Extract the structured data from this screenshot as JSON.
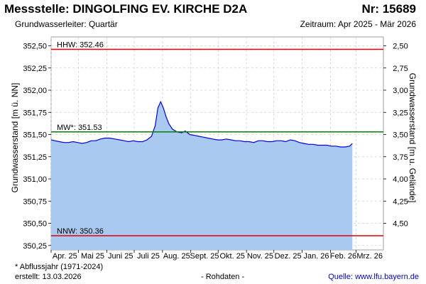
{
  "header": {
    "station": "Messstelle: DINGOLFING EV. KIRCHE D2A",
    "number": "Nr: 15689",
    "aquifer": "Grundwasserleiter: Quartär",
    "period": "Zeitraum: Apr 2025 - Mär 2026"
  },
  "footer": {
    "note": "* Abflussjahr (1971-2024)",
    "created": "erstellt:  13.03.2026",
    "raw": "- Rohdaten -",
    "source_label": "Quelle:",
    "source_url": "www.lfu.bayern.de"
  },
  "chart_data": {
    "type": "area",
    "ylabel_left": "Grundwasserstand [m ü. NN]",
    "ylabel_right": "Grundwasserstand [m u. Gelände]",
    "ylim": [
      350.2,
      352.6
    ],
    "yticks_left": [
      "352,50",
      "352,25",
      "352,00",
      "351,75",
      "351,50",
      "351,25",
      "351,00",
      "350,75",
      "350,50",
      "350,25"
    ],
    "ytick_values_left": [
      352.5,
      352.25,
      352.0,
      351.75,
      351.5,
      351.25,
      351.0,
      350.75,
      350.5,
      350.25
    ],
    "yticks_right": [
      "2,50",
      "2,75",
      "3,00",
      "3,25",
      "3,50",
      "3,75",
      "4,00",
      "4,25",
      "4,50"
    ],
    "ytick_values_right": [
      2.5,
      2.75,
      3.0,
      3.25,
      3.5,
      3.75,
      4.0,
      4.25,
      4.5
    ],
    "xlim": [
      "2025-04-01",
      "2026-03-31"
    ],
    "x_month_labels": [
      "Apr. 25",
      "Mai 25",
      "Juni 25",
      "Juli 25",
      "Aug. 25",
      "Sept. 25",
      "Okt. 25",
      "Nov. 25",
      "Dez. 25",
      "Jan. 26",
      "Feb. 26",
      "Mrz. 26"
    ],
    "x_month_starts": [
      "2025-04-01",
      "2025-05-01",
      "2025-06-01",
      "2025-07-01",
      "2025-08-01",
      "2025-09-01",
      "2025-10-01",
      "2025-11-01",
      "2025-12-01",
      "2026-01-01",
      "2026-02-01",
      "2026-03-01"
    ],
    "grid": true,
    "reference_lines": [
      {
        "label": "HHW: 352.46",
        "value": 352.46,
        "color": "#e00000"
      },
      {
        "label": "MW*: 351.53",
        "value": 351.53,
        "color": "#008000"
      },
      {
        "label": "NNW: 350.36",
        "value": 350.36,
        "color": "#e00000"
      }
    ],
    "series": [
      {
        "color": "#0000dd",
        "fill": "#a9c9f0",
        "points": [
          [
            "2025-04-01",
            351.44
          ],
          [
            "2025-04-05",
            351.43
          ],
          [
            "2025-04-10",
            351.42
          ],
          [
            "2025-04-15",
            351.41
          ],
          [
            "2025-04-20",
            351.41
          ],
          [
            "2025-04-25",
            351.42
          ],
          [
            "2025-04-30",
            351.41
          ],
          [
            "2025-05-05",
            351.4
          ],
          [
            "2025-05-10",
            351.41
          ],
          [
            "2025-05-15",
            351.43
          ],
          [
            "2025-05-20",
            351.43
          ],
          [
            "2025-05-25",
            351.45
          ],
          [
            "2025-05-30",
            351.46
          ],
          [
            "2025-06-04",
            351.46
          ],
          [
            "2025-06-10",
            351.45
          ],
          [
            "2025-06-15",
            351.44
          ],
          [
            "2025-06-20",
            351.43
          ],
          [
            "2025-06-25",
            351.42
          ],
          [
            "2025-06-30",
            351.43
          ],
          [
            "2025-07-05",
            351.42
          ],
          [
            "2025-07-10",
            351.42
          ],
          [
            "2025-07-15",
            351.44
          ],
          [
            "2025-07-20",
            351.48
          ],
          [
            "2025-07-24",
            351.6
          ],
          [
            "2025-07-27",
            351.8
          ],
          [
            "2025-07-30",
            351.87
          ],
          [
            "2025-08-02",
            351.8
          ],
          [
            "2025-08-05",
            351.7
          ],
          [
            "2025-08-08",
            351.62
          ],
          [
            "2025-08-12",
            351.56
          ],
          [
            "2025-08-17",
            351.53
          ],
          [
            "2025-08-22",
            351.52
          ],
          [
            "2025-08-26",
            351.54
          ],
          [
            "2025-08-31",
            351.5
          ],
          [
            "2025-09-05",
            351.49
          ],
          [
            "2025-09-10",
            351.48
          ],
          [
            "2025-09-15",
            351.47
          ],
          [
            "2025-09-20",
            351.46
          ],
          [
            "2025-09-25",
            351.45
          ],
          [
            "2025-09-30",
            351.44
          ],
          [
            "2025-10-05",
            351.44
          ],
          [
            "2025-10-10",
            351.45
          ],
          [
            "2025-10-15",
            351.44
          ],
          [
            "2025-10-20",
            351.43
          ],
          [
            "2025-10-25",
            351.43
          ],
          [
            "2025-10-30",
            351.42
          ],
          [
            "2025-11-04",
            351.42
          ],
          [
            "2025-11-09",
            351.41
          ],
          [
            "2025-11-14",
            351.43
          ],
          [
            "2025-11-19",
            351.43
          ],
          [
            "2025-11-24",
            351.42
          ],
          [
            "2025-11-29",
            351.42
          ],
          [
            "2025-12-04",
            351.43
          ],
          [
            "2025-12-09",
            351.43
          ],
          [
            "2025-12-14",
            351.42
          ],
          [
            "2025-12-19",
            351.44
          ],
          [
            "2025-12-24",
            351.43
          ],
          [
            "2025-12-29",
            351.41
          ],
          [
            "2026-01-03",
            351.4
          ],
          [
            "2026-01-08",
            351.39
          ],
          [
            "2026-01-13",
            351.39
          ],
          [
            "2026-01-18",
            351.38
          ],
          [
            "2026-01-23",
            351.38
          ],
          [
            "2026-01-28",
            351.38
          ],
          [
            "2026-02-02",
            351.37
          ],
          [
            "2026-02-07",
            351.37
          ],
          [
            "2026-02-12",
            351.36
          ],
          [
            "2026-02-17",
            351.36
          ],
          [
            "2026-02-22",
            351.37
          ],
          [
            "2026-02-25",
            351.4
          ]
        ]
      }
    ]
  }
}
